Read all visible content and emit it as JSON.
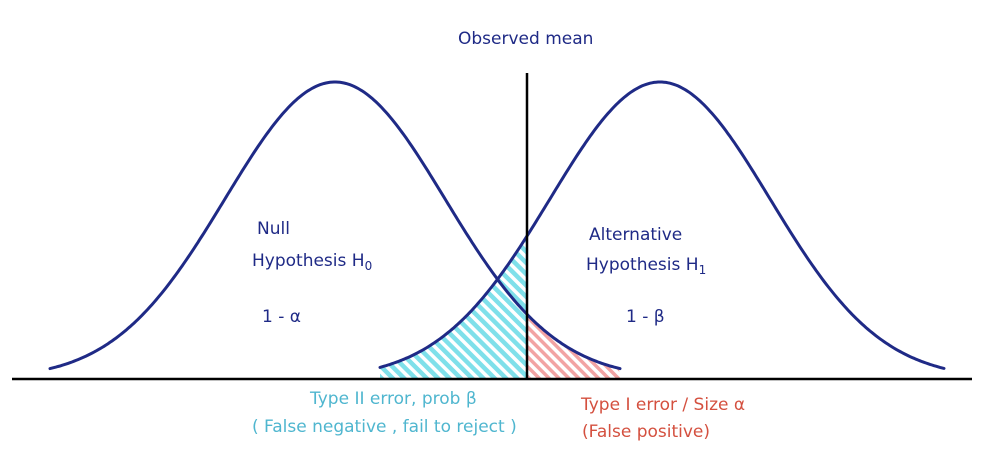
{
  "header": {
    "observed_mean": "Observed mean"
  },
  "null_curve": {
    "label_line1": "Null",
    "label_line2": "Hypothesis H",
    "label_sub": "0",
    "area_label": "1 - α"
  },
  "alt_curve": {
    "label_line1": "Alternative",
    "label_line2": "Hypothesis H",
    "label_sub": "1",
    "area_label": "1 - β"
  },
  "type2": {
    "line1": "Type II error, prob β",
    "line2": "( False negative , fail to reject )"
  },
  "type1": {
    "line1": "Type I error / Size α",
    "line2": "(False positive)"
  },
  "colors": {
    "curve": "#1f2a86",
    "type2_hatch": "#7fe0ea",
    "type1_hatch": "#f2a3a3",
    "type2_text": "#4fb6cf",
    "type1_text": "#d4503f"
  }
}
